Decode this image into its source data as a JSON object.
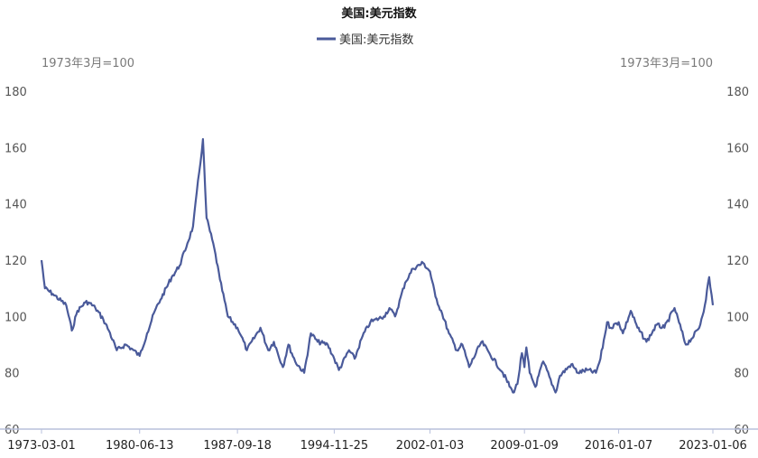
{
  "chart_data": {
    "type": "line",
    "title": "美国:美元指数",
    "unit_left": "1973年3月=100",
    "unit_right": "1973年3月=100",
    "legend": [
      "美国:美元指数"
    ],
    "legend_position": "top-center",
    "grid": false,
    "ylim": [
      60,
      180
    ],
    "yticks": [
      60,
      80,
      100,
      120,
      140,
      160,
      180
    ],
    "xlim": [
      "1973-03-01",
      "2023-01-06"
    ],
    "xticks": [
      "1973-03-01",
      "1980-06-13",
      "1987-09-18",
      "1994-11-25",
      "2002-01-03",
      "2009-01-09",
      "2016-01-07",
      "2023-01-06"
    ],
    "colors": {
      "series": "#4a5a9a",
      "axis": "#b8c0dc"
    },
    "series": [
      {
        "name": "美国:美元指数",
        "x": [
          "1973-03-01",
          "1973-06-01",
          "1974-01-01",
          "1975-01-01",
          "1975-06-01",
          "1975-11-01",
          "1976-06-01",
          "1976-09-01",
          "1977-03-01",
          "1977-10-01",
          "1978-03-01",
          "1978-10-01",
          "1979-06-01",
          "1980-01-01",
          "1980-06-13",
          "1981-01-01",
          "1981-08-01",
          "1982-01-01",
          "1982-11-01",
          "1983-06-01",
          "1984-01-01",
          "1984-06-01",
          "1985-02-25",
          "1985-06-01",
          "1986-01-01",
          "1986-06-01",
          "1987-01-01",
          "1987-09-18",
          "1988-01-01",
          "1988-06-01",
          "1989-06-01",
          "1990-01-01",
          "1990-06-01",
          "1991-02-01",
          "1991-07-01",
          "1992-01-01",
          "1992-09-01",
          "1993-03-01",
          "1993-09-01",
          "1994-06-01",
          "1994-11-25",
          "1995-04-01",
          "1996-01-01",
          "1996-06-01",
          "1997-01-01",
          "1997-08-01",
          "1998-08-01",
          "1999-01-01",
          "1999-06-01",
          "2000-03-01",
          "2000-10-01",
          "2001-07-01",
          "2002-01-03",
          "2002-06-01",
          "2002-12-01",
          "2003-06-01",
          "2004-01-01",
          "2004-06-01",
          "2004-12-01",
          "2005-11-01",
          "2006-06-01",
          "2007-06-01",
          "2008-03-01",
          "2008-07-01",
          "2008-11-01",
          "2009-01-09",
          "2009-03-01",
          "2009-06-01",
          "2009-11-01",
          "2010-06-01",
          "2011-05-01",
          "2011-09-01",
          "2012-07-01",
          "2013-01-01",
          "2013-09-01",
          "2014-05-01",
          "2014-09-01",
          "2015-03-01",
          "2015-06-01",
          "2016-01-07",
          "2016-05-01",
          "2016-12-01",
          "2017-06-01",
          "2018-02-01",
          "2018-11-01",
          "2019-06-01",
          "2020-03-01",
          "2021-01-01",
          "2021-06-01",
          "2022-01-01",
          "2022-06-01",
          "2022-09-27",
          "2023-01-06"
        ],
        "values": [
          120,
          110,
          108,
          104,
          95,
          102,
          105,
          105,
          103,
          99,
          95,
          88,
          90,
          88,
          86,
          94,
          102,
          106,
          114,
          118,
          126,
          132,
          163,
          135,
          124,
          113,
          100,
          96,
          93,
          88,
          96,
          88,
          91,
          82,
          90,
          84,
          80,
          94,
          91,
          90,
          85,
          81,
          88,
          85,
          93,
          98,
          100,
          103,
          100,
          112,
          117,
          119,
          116,
          107,
          101,
          94,
          88,
          90,
          82,
          91,
          87,
          80,
          73,
          76,
          87,
          82,
          89,
          80,
          75,
          84,
          73,
          79,
          83,
          80,
          81,
          80,
          85,
          98,
          96,
          98,
          94,
          102,
          96,
          91,
          97,
          96,
          103,
          90,
          92,
          96,
          104,
          114,
          104
        ]
      }
    ]
  }
}
